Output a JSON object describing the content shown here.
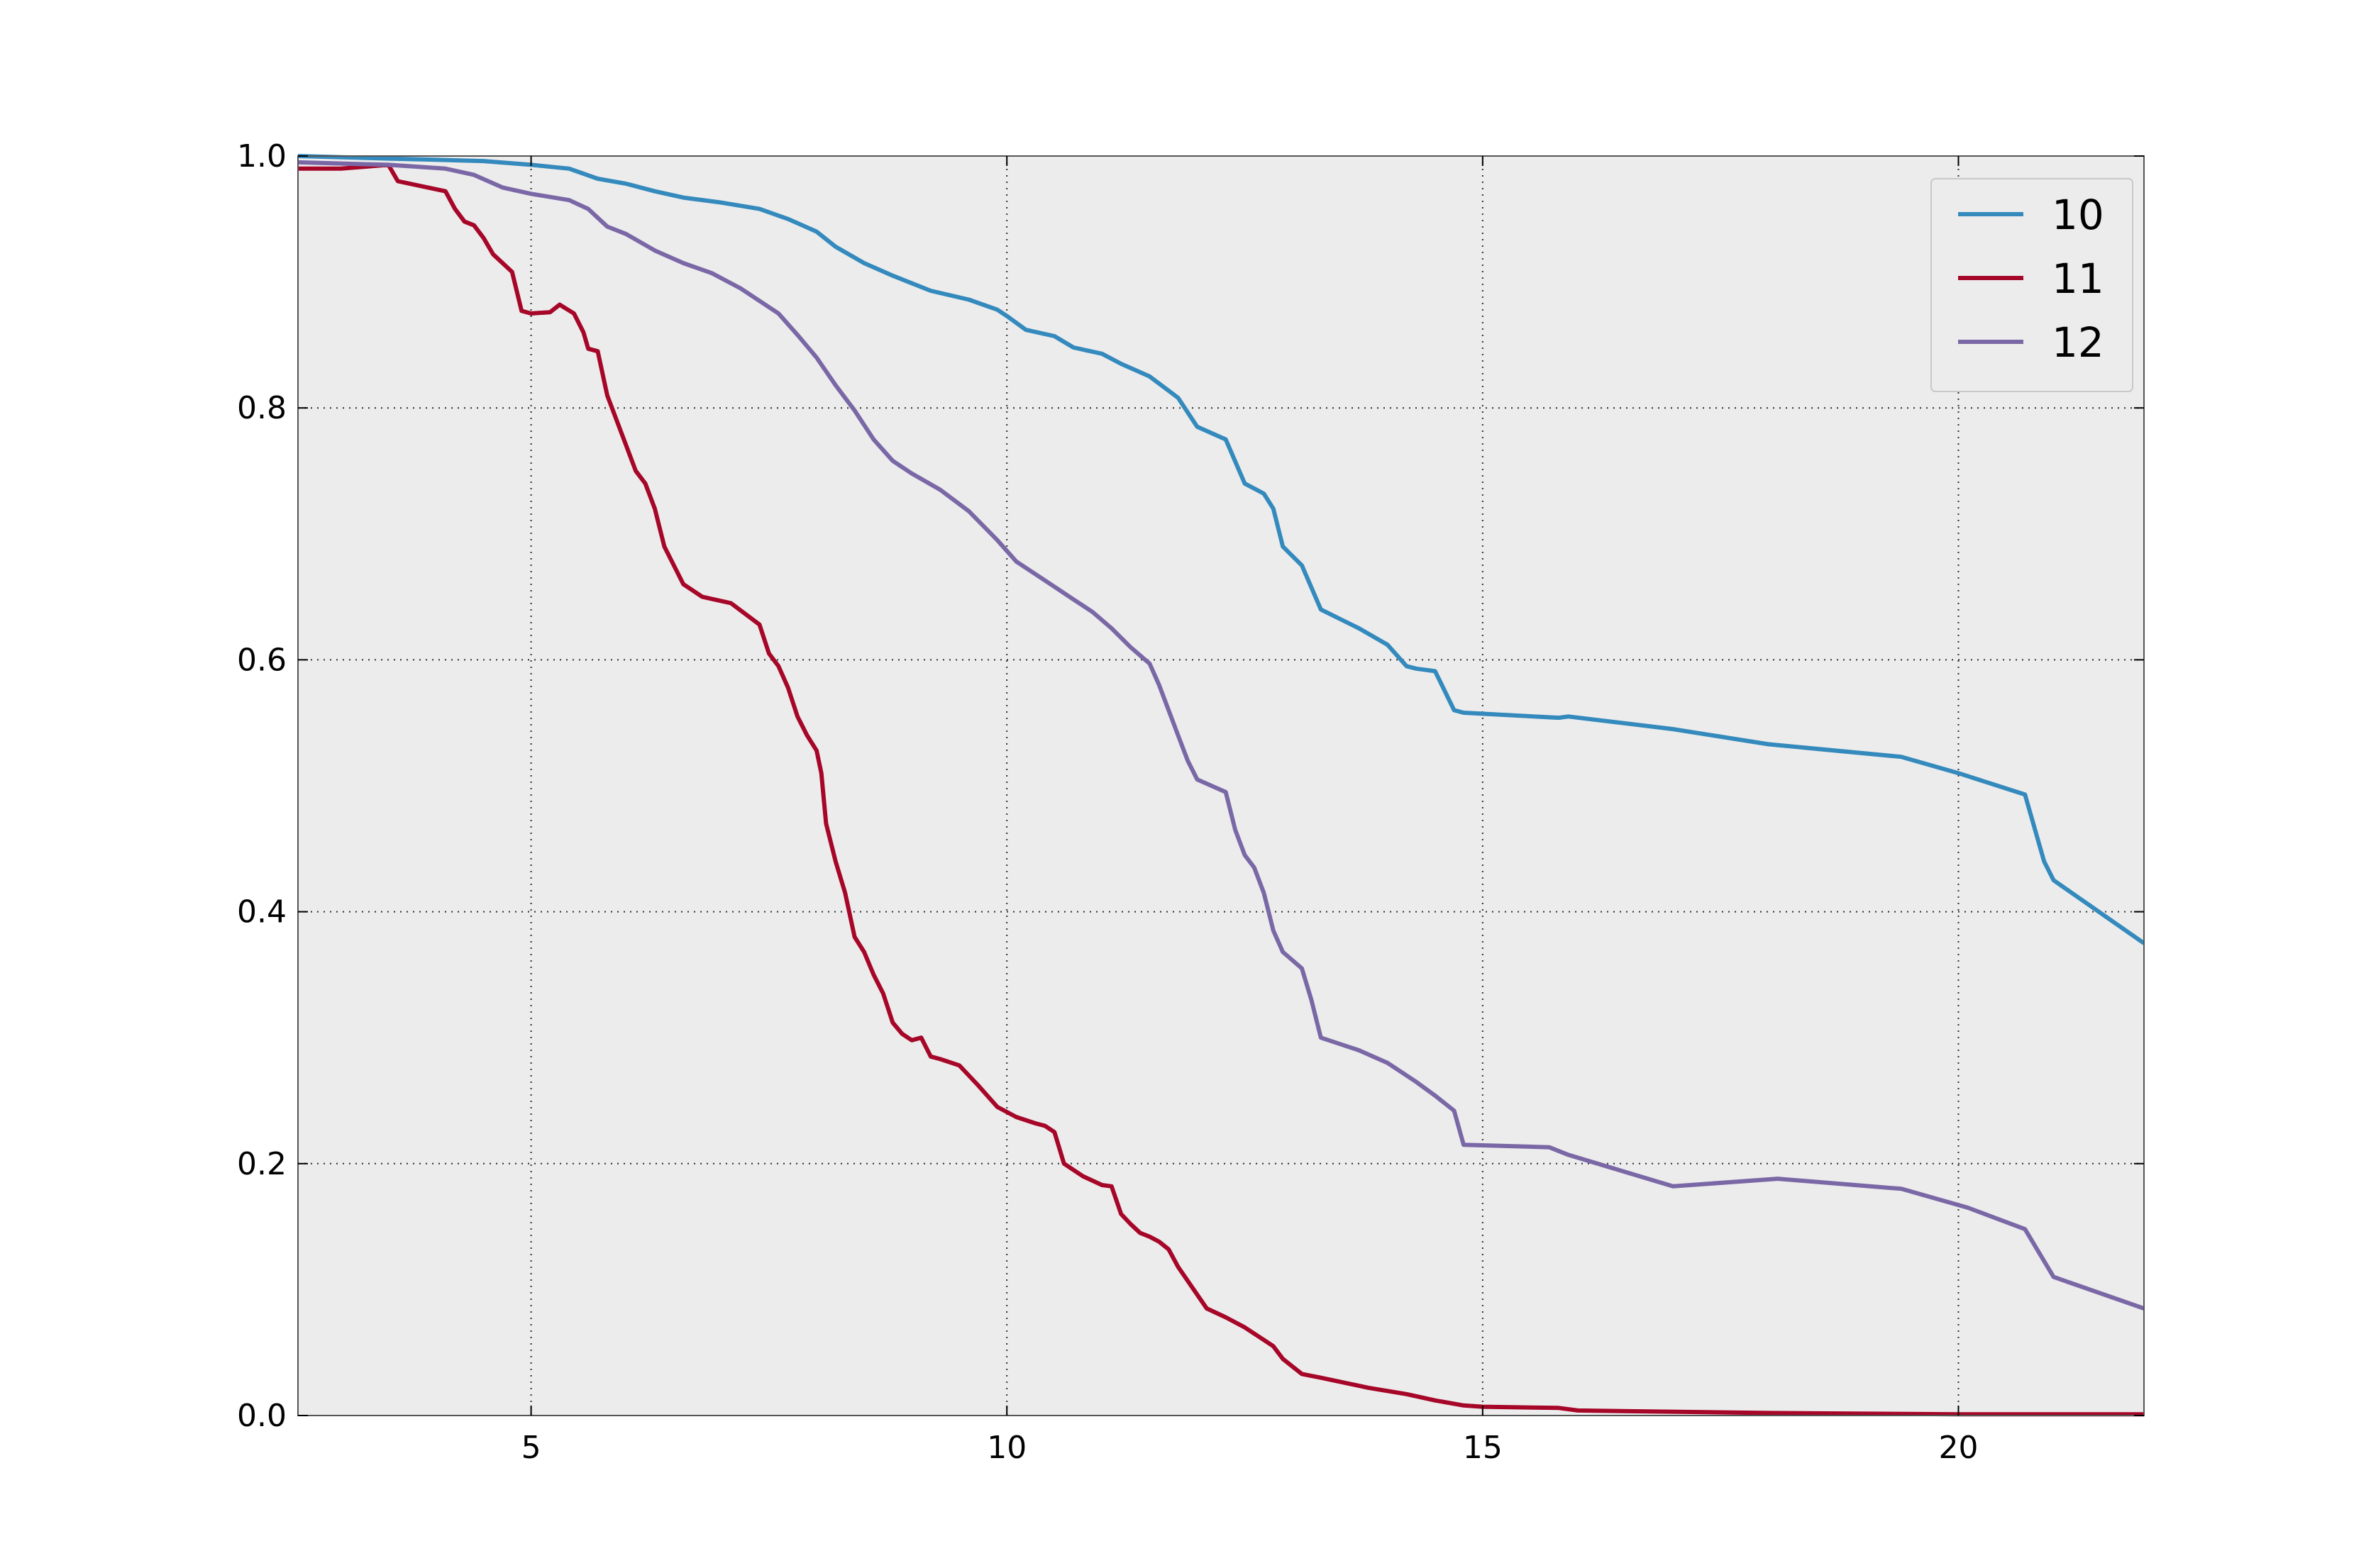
{
  "chart_data": {
    "type": "line",
    "title": "",
    "xlabel": "",
    "ylabel": "",
    "xlim": [
      2.55,
      21.95
    ],
    "ylim": [
      0.0,
      1.0
    ],
    "xticks": [
      5,
      10,
      15,
      20
    ],
    "yticks": [
      0.0,
      0.2,
      0.4,
      0.6,
      0.8,
      1.0
    ],
    "xtick_labels": [
      "5",
      "10",
      "15",
      "20"
    ],
    "ytick_labels": [
      "0.0",
      "0.2",
      "0.4",
      "0.6",
      "0.8",
      "1.0"
    ],
    "grid": true,
    "background": "#ececec",
    "legend_position": "top-right",
    "series": [
      {
        "name": "10",
        "color": "#348abd",
        "x": [
          2.55,
          3.5,
          4.0,
          4.5,
          5.0,
          5.4,
          5.7,
          6.0,
          6.3,
          6.6,
          7.0,
          7.4,
          7.7,
          8.0,
          8.2,
          8.5,
          8.8,
          9.2,
          9.6,
          9.9,
          10.0,
          10.2,
          10.5,
          10.7,
          11.0,
          11.2,
          11.5,
          11.8,
          12.0,
          12.3,
          12.5,
          12.7,
          12.8,
          12.9,
          13.1,
          13.3,
          13.7,
          14.0,
          14.2,
          14.3,
          14.5,
          14.7,
          14.8,
          15.8,
          15.9,
          17.0,
          18.0,
          19.4,
          20.0,
          20.7,
          20.9,
          21.0,
          21.95
        ],
        "y": [
          1.0,
          0.998,
          0.997,
          0.996,
          0.993,
          0.99,
          0.982,
          0.978,
          0.972,
          0.967,
          0.963,
          0.958,
          0.95,
          0.94,
          0.928,
          0.915,
          0.905,
          0.893,
          0.886,
          0.878,
          0.873,
          0.862,
          0.857,
          0.848,
          0.843,
          0.835,
          0.825,
          0.808,
          0.785,
          0.775,
          0.74,
          0.732,
          0.72,
          0.69,
          0.675,
          0.64,
          0.625,
          0.612,
          0.595,
          0.593,
          0.591,
          0.56,
          0.558,
          0.554,
          0.555,
          0.545,
          0.533,
          0.523,
          0.51,
          0.493,
          0.44,
          0.425,
          0.375
        ]
      },
      {
        "name": "11",
        "color": "#a60628",
        "x": [
          2.55,
          3.0,
          3.5,
          3.6,
          4.1,
          4.2,
          4.3,
          4.4,
          4.5,
          4.6,
          4.8,
          4.9,
          5.0,
          5.2,
          5.3,
          5.45,
          5.55,
          5.6,
          5.7,
          5.8,
          6.1,
          6.2,
          6.3,
          6.4,
          6.5,
          6.6,
          6.8,
          7.1,
          7.4,
          7.5,
          7.6,
          7.7,
          7.8,
          7.9,
          8.0,
          8.05,
          8.1,
          8.2,
          8.3,
          8.4,
          8.5,
          8.6,
          8.7,
          8.8,
          8.9,
          9.0,
          9.1,
          9.2,
          9.3,
          9.5,
          9.6,
          9.7,
          9.9,
          10.1,
          10.3,
          10.4,
          10.5,
          10.6,
          10.8,
          11.0,
          11.1,
          11.2,
          11.3,
          11.4,
          11.5,
          11.6,
          11.7,
          11.8,
          12.1,
          12.3,
          12.5,
          12.7,
          12.8,
          12.9,
          13.1,
          13.3,
          13.8,
          14.2,
          14.5,
          14.8,
          15.0,
          15.8,
          16.0,
          18.0,
          20.0,
          21.95
        ],
        "y": [
          0.99,
          0.99,
          0.993,
          0.98,
          0.972,
          0.958,
          0.948,
          0.945,
          0.935,
          0.922,
          0.908,
          0.877,
          0.875,
          0.876,
          0.882,
          0.875,
          0.86,
          0.847,
          0.845,
          0.81,
          0.75,
          0.74,
          0.72,
          0.69,
          0.675,
          0.66,
          0.65,
          0.645,
          0.628,
          0.605,
          0.595,
          0.578,
          0.555,
          0.54,
          0.528,
          0.51,
          0.47,
          0.44,
          0.415,
          0.38,
          0.368,
          0.35,
          0.335,
          0.312,
          0.303,
          0.298,
          0.3,
          0.285,
          0.283,
          0.278,
          0.27,
          0.262,
          0.245,
          0.237,
          0.232,
          0.23,
          0.225,
          0.2,
          0.19,
          0.183,
          0.182,
          0.16,
          0.152,
          0.145,
          0.142,
          0.138,
          0.132,
          0.118,
          0.085,
          0.078,
          0.07,
          0.06,
          0.055,
          0.045,
          0.033,
          0.03,
          0.022,
          0.017,
          0.012,
          0.008,
          0.007,
          0.006,
          0.004,
          0.002,
          0.001,
          0.001
        ]
      },
      {
        "name": "12",
        "color": "#7a68a6",
        "x": [
          2.55,
          3.5,
          4.1,
          4.4,
          4.7,
          5.0,
          5.4,
          5.6,
          5.8,
          6.0,
          6.3,
          6.6,
          6.9,
          7.2,
          7.4,
          7.6,
          7.8,
          8.0,
          8.2,
          8.4,
          8.6,
          8.8,
          9.0,
          9.3,
          9.6,
          9.9,
          10.1,
          10.3,
          10.5,
          10.7,
          10.9,
          11.1,
          11.3,
          11.5,
          11.6,
          11.7,
          11.8,
          11.9,
          12.0,
          12.3,
          12.4,
          12.5,
          12.6,
          12.7,
          12.8,
          12.9,
          13.1,
          13.2,
          13.3,
          13.7,
          14.0,
          14.3,
          14.5,
          14.7,
          14.8,
          15.7,
          15.9,
          17.0,
          18.1,
          19.4,
          20.1,
          20.7,
          21.0,
          21.95
        ],
        "y": [
          0.995,
          0.993,
          0.99,
          0.985,
          0.975,
          0.97,
          0.965,
          0.958,
          0.944,
          0.938,
          0.925,
          0.915,
          0.907,
          0.895,
          0.885,
          0.875,
          0.858,
          0.84,
          0.818,
          0.798,
          0.775,
          0.758,
          0.748,
          0.735,
          0.718,
          0.695,
          0.678,
          0.668,
          0.658,
          0.648,
          0.638,
          0.625,
          0.61,
          0.597,
          0.58,
          0.56,
          0.54,
          0.52,
          0.505,
          0.495,
          0.465,
          0.445,
          0.435,
          0.415,
          0.385,
          0.368,
          0.355,
          0.33,
          0.3,
          0.29,
          0.28,
          0.265,
          0.254,
          0.242,
          0.215,
          0.213,
          0.207,
          0.182,
          0.188,
          0.18,
          0.165,
          0.148,
          0.11,
          0.085
        ]
      }
    ]
  }
}
